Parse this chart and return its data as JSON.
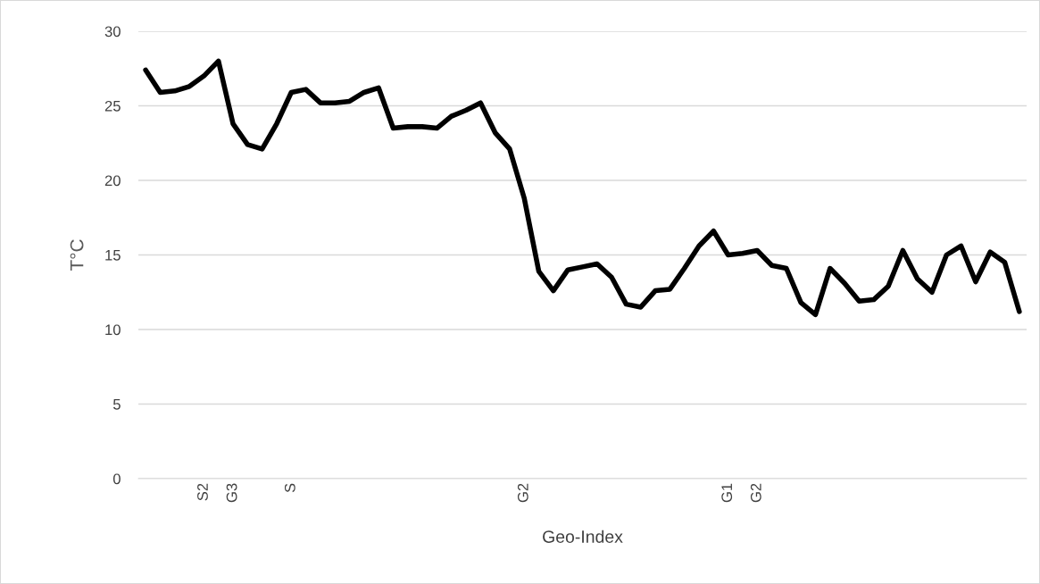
{
  "chart_data": {
    "type": "line",
    "xlabel": "Geo-Index",
    "ylabel": "T°C",
    "categories": [
      null,
      null,
      null,
      null,
      "S2",
      null,
      "G3",
      null,
      null,
      null,
      "S",
      null,
      null,
      null,
      null,
      null,
      null,
      null,
      null,
      null,
      null,
      null,
      null,
      null,
      null,
      null,
      "G2",
      null,
      null,
      null,
      null,
      null,
      null,
      null,
      null,
      null,
      null,
      null,
      null,
      null,
      "G1",
      null,
      "G2",
      null,
      null,
      null,
      null,
      null,
      null,
      null,
      null,
      null,
      null,
      null,
      null,
      null,
      null,
      null,
      null,
      null,
      null
    ],
    "series": [
      {
        "color": "#000000",
        "values": [
          27.4,
          25.9,
          26.0,
          26.3,
          27.0,
          28.0,
          23.8,
          22.4,
          22.1,
          23.8,
          25.9,
          26.1,
          25.2,
          25.2,
          25.3,
          25.9,
          26.2,
          23.5,
          23.6,
          23.6,
          23.5,
          24.3,
          24.7,
          25.2,
          23.2,
          22.1,
          18.8,
          13.9,
          12.6,
          14.0,
          14.2,
          14.4,
          13.5,
          11.7,
          11.5,
          12.6,
          12.7,
          14.1,
          15.6,
          16.6,
          15.0,
          15.1,
          15.3,
          14.3,
          14.1,
          11.8,
          11.0,
          14.1,
          13.1,
          11.9,
          12.0,
          12.9,
          15.3,
          13.4,
          12.5,
          15.0,
          15.6,
          13.2,
          15.2,
          14.5,
          11.2
        ]
      }
    ],
    "ylim": [
      0,
      30
    ],
    "yticks": [
      0,
      5,
      10,
      15,
      20,
      25,
      30
    ],
    "grid": "y",
    "legend": false,
    "marker": "none",
    "line_style": "solid"
  }
}
